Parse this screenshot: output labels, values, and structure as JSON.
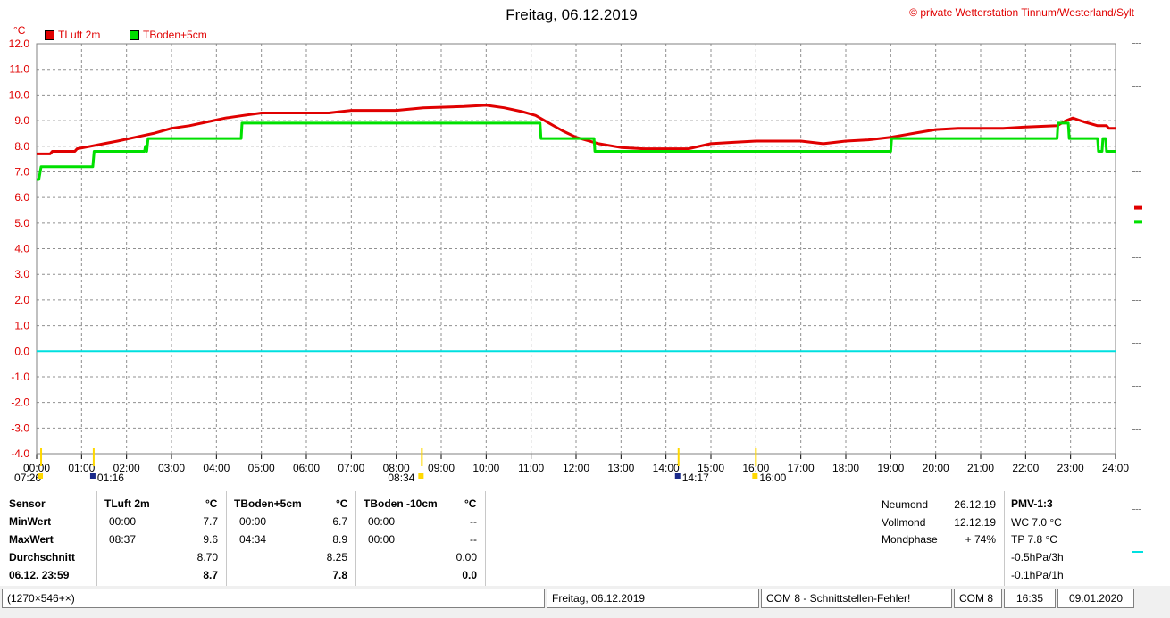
{
  "header": {
    "title": "Freitag, 06.12.2019",
    "credit": "© private Wetterstation Tinnum/Westerland/Sylt",
    "unit": "°C"
  },
  "legend": [
    {
      "label": "TLuft 2m",
      "color": "#e00000"
    },
    {
      "label": "TBoden+5cm",
      "color": "#00e000"
    }
  ],
  "chart_data": {
    "type": "line",
    "xlabel": "",
    "ylabel": "°C",
    "xlim": [
      0,
      24
    ],
    "ylim": [
      -4,
      12
    ],
    "y_ticks": [
      "12.0",
      "11.0",
      "10.0",
      "9.0",
      "8.0",
      "7.0",
      "6.0",
      "5.0",
      "4.0",
      "3.0",
      "2.0",
      "1.0",
      "0.0",
      "-1.0",
      "-2.0",
      "-3.0",
      "-4.0"
    ],
    "x_ticks": [
      "00:00",
      "01:00",
      "02:00",
      "03:00",
      "04:00",
      "05:00",
      "06:00",
      "07:00",
      "08:00",
      "09:00",
      "10:00",
      "11:00",
      "12:00",
      "13:00",
      "14:00",
      "15:00",
      "16:00",
      "17:00",
      "18:00",
      "19:00",
      "20:00",
      "21:00",
      "22:00",
      "23:00",
      "24:00"
    ],
    "grid": true,
    "series": [
      {
        "name": "TLuft 2m",
        "color": "#e00000",
        "points": [
          [
            0,
            7.7
          ],
          [
            0.3,
            7.7
          ],
          [
            0.35,
            7.8
          ],
          [
            0.85,
            7.8
          ],
          [
            0.9,
            7.9
          ],
          [
            1.2,
            8.0
          ],
          [
            1.5,
            8.1
          ],
          [
            1.8,
            8.2
          ],
          [
            2.2,
            8.35
          ],
          [
            2.6,
            8.5
          ],
          [
            3.0,
            8.7
          ],
          [
            3.4,
            8.8
          ],
          [
            3.8,
            8.95
          ],
          [
            4.2,
            9.1
          ],
          [
            4.6,
            9.2
          ],
          [
            5.0,
            9.3
          ],
          [
            6.0,
            9.3
          ],
          [
            6.5,
            9.3
          ],
          [
            7.0,
            9.4
          ],
          [
            8.0,
            9.4
          ],
          [
            8.6,
            9.5
          ],
          [
            9.5,
            9.55
          ],
          [
            10.0,
            9.6
          ],
          [
            10.4,
            9.5
          ],
          [
            10.8,
            9.35
          ],
          [
            11.1,
            9.2
          ],
          [
            11.4,
            8.9
          ],
          [
            11.7,
            8.6
          ],
          [
            12.0,
            8.35
          ],
          [
            12.5,
            8.1
          ],
          [
            13.0,
            7.95
          ],
          [
            13.5,
            7.9
          ],
          [
            14.5,
            7.9
          ],
          [
            15.0,
            8.1
          ],
          [
            15.5,
            8.15
          ],
          [
            16.0,
            8.2
          ],
          [
            16.5,
            8.2
          ],
          [
            17.0,
            8.2
          ],
          [
            17.5,
            8.1
          ],
          [
            18.0,
            8.2
          ],
          [
            18.5,
            8.25
          ],
          [
            19.0,
            8.35
          ],
          [
            19.5,
            8.5
          ],
          [
            20.0,
            8.65
          ],
          [
            20.5,
            8.7
          ],
          [
            21.5,
            8.7
          ],
          [
            22.0,
            8.75
          ],
          [
            22.7,
            8.8
          ],
          [
            22.9,
            9.0
          ],
          [
            23.05,
            9.1
          ],
          [
            23.3,
            8.95
          ],
          [
            23.6,
            8.8
          ],
          [
            23.8,
            8.8
          ],
          [
            23.85,
            8.7
          ],
          [
            24,
            8.7
          ]
        ]
      },
      {
        "name": "TBoden+5cm",
        "color": "#00e000",
        "points": [
          [
            0,
            6.7
          ],
          [
            0.05,
            6.7
          ],
          [
            0.1,
            7.2
          ],
          [
            1.25,
            7.2
          ],
          [
            1.28,
            7.8
          ],
          [
            2.4,
            7.8
          ],
          [
            2.42,
            8.0
          ],
          [
            2.45,
            7.8
          ],
          [
            2.48,
            8.3
          ],
          [
            4.55,
            8.3
          ],
          [
            4.57,
            8.9
          ],
          [
            11.2,
            8.9
          ],
          [
            11.22,
            8.3
          ],
          [
            12.4,
            8.3
          ],
          [
            12.42,
            7.8
          ],
          [
            19.0,
            7.8
          ],
          [
            19.02,
            8.3
          ],
          [
            22.7,
            8.3
          ],
          [
            22.72,
            8.9
          ],
          [
            22.95,
            8.9
          ],
          [
            22.97,
            8.3
          ],
          [
            23.6,
            8.3
          ],
          [
            23.62,
            7.8
          ],
          [
            23.7,
            7.8
          ],
          [
            23.72,
            8.3
          ],
          [
            23.78,
            8.3
          ],
          [
            23.8,
            7.8
          ],
          [
            24,
            7.8
          ]
        ]
      },
      {
        "name": "",
        "color": "#00e0e0",
        "points": [
          [
            0,
            0
          ],
          [
            24,
            0
          ]
        ]
      }
    ],
    "markers_below": [
      {
        "label": "07:26",
        "x": 0.1
      },
      {
        "label": "01:16",
        "x": 1.27
      },
      {
        "label": "08:34",
        "x": 8.57
      },
      {
        "label": "14:17",
        "x": 14.28
      },
      {
        "label": "16:00",
        "x": 16.0
      }
    ],
    "right_markers": [
      {
        "color": "#e00000",
        "value": 5.6
      },
      {
        "color": "#00e000",
        "value": 5.05
      }
    ]
  },
  "stats": {
    "col_sensor": [
      "Sensor",
      "MinWert",
      "MaxWert",
      "Durchschnitt",
      "06.12. 23:59"
    ],
    "tluft": {
      "head": "TLuft 2m",
      "unit": "°C",
      "rows": [
        [
          "00:00",
          "7.7"
        ],
        [
          "08:37",
          "9.6"
        ],
        [
          "",
          "8.70"
        ],
        [
          "",
          "8.7"
        ]
      ]
    },
    "tboden5": {
      "head": "TBoden+5cm",
      "unit": "°C",
      "rows": [
        [
          "00:00",
          "6.7"
        ],
        [
          "04:34",
          "8.9"
        ],
        [
          "",
          "8.25"
        ],
        [
          "",
          "7.8"
        ]
      ]
    },
    "tboden10": {
      "head": "TBoden -10cm",
      "unit": "°C",
      "rows": [
        [
          "00:00",
          "--"
        ],
        [
          "00:00",
          "--"
        ],
        [
          "",
          "0.00"
        ],
        [
          "",
          "0.0"
        ]
      ]
    },
    "moon": {
      "labels": [
        "Neumond",
        "Vollmond",
        "Mondphase"
      ],
      "values": [
        "26.12.19",
        "12.12.19",
        "+ 74%"
      ]
    },
    "pmv": {
      "head": "PMV-1:3",
      "lines": [
        "WC 7.0 °C",
        "TP 7.8 °C",
        "-0.5hPa/3h",
        "-0.1hPa/1h"
      ]
    }
  },
  "status": {
    "size": "(1270×546+×)",
    "date": "Freitag, 06.12.2019",
    "error": "COM 8 - Schnittstellen-Fehler!",
    "port": "COM 8",
    "time": "16:35",
    "today": "09.01.2020"
  }
}
